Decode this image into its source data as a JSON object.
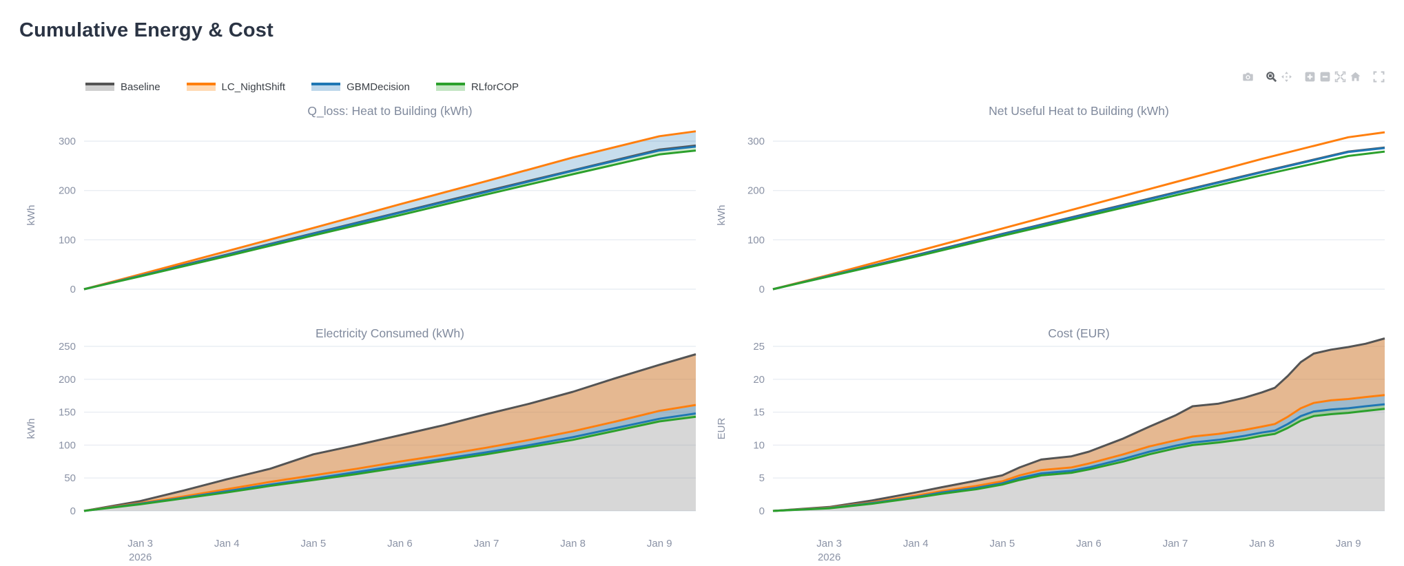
{
  "page": {
    "title": "Cumulative Energy & Cost"
  },
  "legend": {
    "items": [
      {
        "id": "baseline",
        "label": "Baseline",
        "color": "#545454",
        "fill": "#cfcfcf"
      },
      {
        "id": "lc-nightshift",
        "label": "LC_NightShift",
        "color": "#ff7f0e",
        "fill": "#ffd9b3"
      },
      {
        "id": "gbmdecision",
        "label": "GBMDecision",
        "color": "#1f77b4",
        "fill": "#bdd7eb"
      },
      {
        "id": "rlforcop",
        "label": "RLforCOP",
        "color": "#2ca02c",
        "fill": "#c3e5c3"
      }
    ]
  },
  "modebar": {
    "icons": [
      {
        "name": "camera",
        "active": false
      },
      {
        "name": "zoom",
        "active": true
      },
      {
        "name": "pan",
        "active": false
      },
      {
        "name": "zoom-in",
        "active": false
      },
      {
        "name": "zoom-out",
        "active": false
      },
      {
        "name": "autoscale",
        "active": false
      },
      {
        "name": "home",
        "active": false
      },
      {
        "name": "fullscreen",
        "active": false
      }
    ]
  },
  "chart_data": [
    {
      "type": "line",
      "id": "q-loss-heat",
      "title": "Q_loss: Heat to Building (kWh)",
      "ylabel": "kWh",
      "ylim": [
        0,
        335
      ],
      "yticks": [
        0,
        100,
        200,
        300
      ],
      "grid": true,
      "legend_position": "top-left",
      "show_x_labels": false,
      "xticks": [
        {
          "t": 3,
          "label": "Jan 3",
          "sublabel": "2026"
        },
        {
          "t": 4,
          "label": "Jan 4"
        },
        {
          "t": 5,
          "label": "Jan 5"
        },
        {
          "t": 6,
          "label": "Jan 6"
        },
        {
          "t": 7,
          "label": "Jan 7"
        },
        {
          "t": 8,
          "label": "Jan 8"
        },
        {
          "t": 9,
          "label": "Jan 9"
        }
      ],
      "x": [
        2.35,
        3,
        4,
        5,
        6,
        7,
        8,
        9,
        9.42
      ],
      "series": [
        {
          "name": "Baseline",
          "color": "#545454",
          "y": [
            0,
            28,
            70,
            113,
            156,
            199,
            241,
            283,
            291
          ]
        },
        {
          "name": "LC_NightShift",
          "color": "#ff7f0e",
          "y": [
            0,
            30,
            77,
            124,
            172,
            219,
            267,
            310,
            320
          ]
        },
        {
          "name": "GBMDecision",
          "color": "#1f77b4",
          "y": [
            0,
            27,
            69,
            112,
            155,
            197,
            240,
            281,
            289
          ]
        },
        {
          "name": "RLforCOP",
          "color": "#2ca02c",
          "y": [
            0,
            26,
            67,
            109,
            150,
            192,
            233,
            273,
            281
          ]
        }
      ],
      "fills": [
        {
          "mode": "between",
          "upper": "LC_NightShift",
          "lower": "GBMDecision",
          "color": "rgba(31,119,180,0.25)"
        },
        {
          "mode": "between",
          "upper": "GBMDecision",
          "lower": "RLforCOP",
          "color": "rgba(44,160,44,0.22)"
        }
      ]
    },
    {
      "type": "line",
      "id": "net-useful-heat",
      "title": "Net Useful Heat to Building (kWh)",
      "ylabel": "kWh",
      "ylim": [
        0,
        335
      ],
      "yticks": [
        0,
        100,
        200,
        300
      ],
      "grid": true,
      "show_x_labels": false,
      "xticks": [
        {
          "t": 3,
          "label": "Jan 3",
          "sublabel": "2026"
        },
        {
          "t": 4,
          "label": "Jan 4"
        },
        {
          "t": 5,
          "label": "Jan 5"
        },
        {
          "t": 6,
          "label": "Jan 6"
        },
        {
          "t": 7,
          "label": "Jan 7"
        },
        {
          "t": 8,
          "label": "Jan 8"
        },
        {
          "t": 9,
          "label": "Jan 9"
        }
      ],
      "x": [
        2.35,
        3,
        4,
        5,
        6,
        7,
        8,
        9,
        9.42
      ],
      "series": [
        {
          "name": "Baseline",
          "color": "#545454",
          "y": [
            0,
            27,
            69,
            112,
            154,
            196,
            238,
            279,
            287
          ]
        },
        {
          "name": "LC_NightShift",
          "color": "#ff7f0e",
          "y": [
            0,
            29,
            76,
            123,
            170,
            217,
            264,
            308,
            318
          ]
        },
        {
          "name": "GBMDecision",
          "color": "#1f77b4",
          "y": [
            0,
            27,
            68,
            111,
            153,
            195,
            237,
            278,
            286
          ]
        },
        {
          "name": "RLforCOP",
          "color": "#2ca02c",
          "y": [
            0,
            26,
            66,
            108,
            149,
            190,
            231,
            270,
            279
          ]
        }
      ],
      "fills": []
    },
    {
      "type": "area",
      "id": "electricity-consumed",
      "title": "Electricity Consumed (kWh)",
      "ylabel": "kWh",
      "ylim": [
        0,
        260
      ],
      "yticks": [
        0,
        50,
        100,
        150,
        200,
        250
      ],
      "grid": true,
      "show_x_labels": true,
      "xticks": [
        {
          "t": 3,
          "label": "Jan 3",
          "sublabel": "2026"
        },
        {
          "t": 4,
          "label": "Jan 4"
        },
        {
          "t": 5,
          "label": "Jan 5"
        },
        {
          "t": 6,
          "label": "Jan 6"
        },
        {
          "t": 7,
          "label": "Jan 7"
        },
        {
          "t": 8,
          "label": "Jan 8"
        },
        {
          "t": 9,
          "label": "Jan 9"
        }
      ],
      "x": [
        2.35,
        3,
        3.5,
        4,
        4.5,
        5,
        5.5,
        6,
        6.5,
        7,
        7.5,
        8,
        8.5,
        9,
        9.42
      ],
      "series": [
        {
          "name": "Baseline",
          "color": "#545454",
          "y": [
            0,
            15,
            31,
            48,
            64,
            86,
            100,
            115,
            130,
            147,
            163,
            181,
            202,
            222,
            238
          ]
        },
        {
          "name": "LC_NightShift",
          "color": "#ff7f0e",
          "y": [
            0,
            12,
            22,
            33,
            44,
            54,
            64,
            75,
            85,
            96,
            108,
            121,
            136,
            152,
            161
          ]
        },
        {
          "name": "GBMDecision",
          "color": "#1f77b4",
          "y": [
            0,
            11,
            20,
            30,
            40,
            49,
            59,
            69,
            79,
            89,
            100,
            112,
            126,
            140,
            148
          ]
        },
        {
          "name": "RLforCOP",
          "color": "#2ca02c",
          "y": [
            0,
            10,
            19,
            28,
            38,
            47,
            56,
            66,
            76,
            86,
            97,
            108,
            122,
            136,
            143
          ]
        }
      ],
      "fills": [
        {
          "mode": "tozero",
          "series": "Baseline",
          "color": "rgba(130,130,130,0.32)"
        },
        {
          "mode": "between",
          "upper": "Baseline",
          "lower": "LC_NightShift",
          "color": "rgba(255,127,14,0.35)"
        },
        {
          "mode": "between",
          "upper": "LC_NightShift",
          "lower": "GBMDecision",
          "color": "rgba(31,119,180,0.30)"
        },
        {
          "mode": "between",
          "upper": "GBMDecision",
          "lower": "RLforCOP",
          "color": "rgba(44,160,44,0.28)"
        }
      ]
    },
    {
      "type": "area",
      "id": "cost-eur",
      "title": "Cost (EUR)",
      "ylabel": "EUR",
      "ylim": [
        0,
        27.5
      ],
      "yticks": [
        0,
        5,
        10,
        15,
        20,
        25
      ],
      "grid": true,
      "show_x_labels": true,
      "xticks": [
        {
          "t": 3,
          "label": "Jan 3",
          "sublabel": "2026"
        },
        {
          "t": 4,
          "label": "Jan 4"
        },
        {
          "t": 5,
          "label": "Jan 5"
        },
        {
          "t": 6,
          "label": "Jan 6"
        },
        {
          "t": 7,
          "label": "Jan 7"
        },
        {
          "t": 8,
          "label": "Jan 8"
        },
        {
          "t": 9,
          "label": "Jan 9"
        }
      ],
      "x": [
        2.35,
        3,
        3.5,
        4,
        4.3,
        4.7,
        5,
        5.2,
        5.45,
        5.8,
        6,
        6.4,
        6.7,
        7,
        7.2,
        7.5,
        7.8,
        8,
        8.15,
        8.3,
        8.45,
        8.6,
        8.8,
        9,
        9.2,
        9.42
      ],
      "series": [
        {
          "name": "Baseline",
          "color": "#545454",
          "y": [
            0,
            0.6,
            1.6,
            2.8,
            3.6,
            4.6,
            5.4,
            6.6,
            7.8,
            8.3,
            9.0,
            11.0,
            12.8,
            14.5,
            15.9,
            16.3,
            17.2,
            18.0,
            18.7,
            20.5,
            22.6,
            23.9,
            24.5,
            24.9,
            25.4,
            26.2
          ]
        },
        {
          "name": "LC_NightShift",
          "color": "#ff7f0e",
          "y": [
            0,
            0.5,
            1.3,
            2.3,
            3.0,
            3.8,
            4.5,
            5.4,
            6.2,
            6.6,
            7.2,
            8.6,
            9.8,
            10.7,
            11.3,
            11.7,
            12.3,
            12.8,
            13.2,
            14.3,
            15.6,
            16.4,
            16.8,
            17.0,
            17.3,
            17.6
          ]
        },
        {
          "name": "GBMDecision",
          "color": "#1f77b4",
          "y": [
            0,
            0.45,
            1.2,
            2.1,
            2.8,
            3.5,
            4.2,
            5.0,
            5.7,
            6.1,
            6.6,
            7.9,
            9.0,
            9.9,
            10.4,
            10.8,
            11.4,
            11.9,
            12.2,
            13.2,
            14.4,
            15.1,
            15.4,
            15.6,
            15.9,
            16.2
          ]
        },
        {
          "name": "RLforCOP",
          "color": "#2ca02c",
          "y": [
            0,
            0.4,
            1.1,
            2.0,
            2.6,
            3.3,
            4.0,
            4.7,
            5.4,
            5.8,
            6.3,
            7.5,
            8.6,
            9.5,
            10.0,
            10.4,
            10.9,
            11.4,
            11.7,
            12.6,
            13.7,
            14.4,
            14.7,
            14.9,
            15.2,
            15.5
          ]
        }
      ],
      "fills": [
        {
          "mode": "tozero",
          "series": "Baseline",
          "color": "rgba(130,130,130,0.32)"
        },
        {
          "mode": "between",
          "upper": "Baseline",
          "lower": "LC_NightShift",
          "color": "rgba(255,127,14,0.35)"
        },
        {
          "mode": "between",
          "upper": "LC_NightShift",
          "lower": "GBMDecision",
          "color": "rgba(31,119,180,0.30)"
        },
        {
          "mode": "between",
          "upper": "GBMDecision",
          "lower": "RLforCOP",
          "color": "rgba(44,160,44,0.28)"
        }
      ]
    }
  ]
}
